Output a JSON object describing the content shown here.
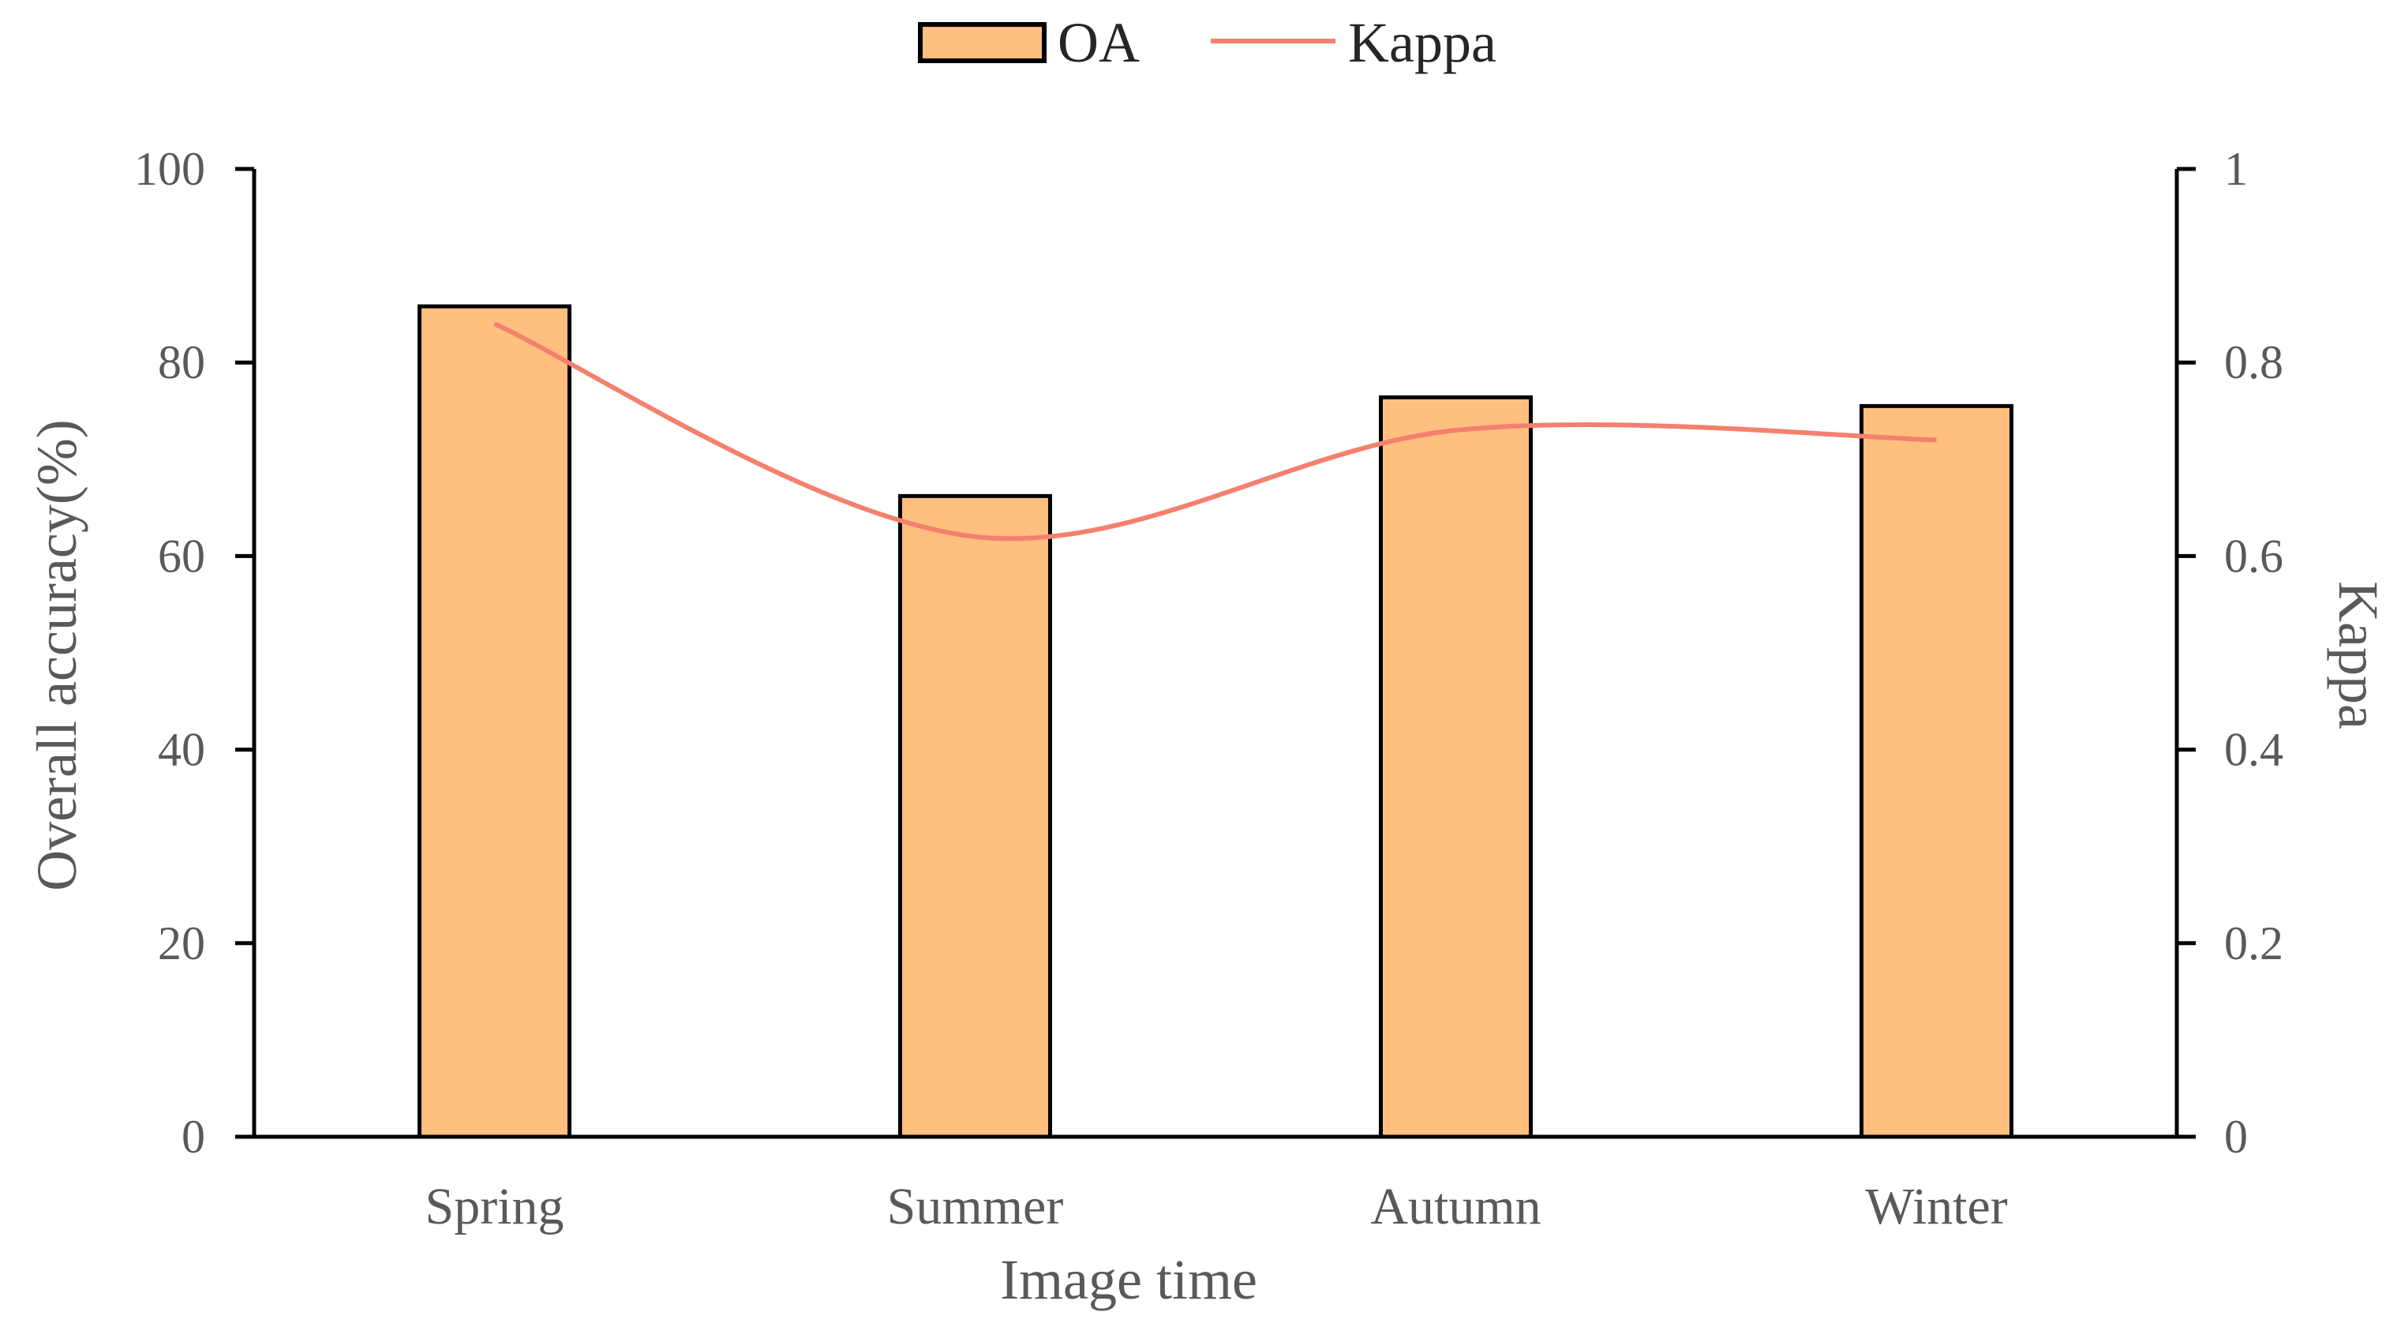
{
  "chart_data": {
    "type": "bar",
    "title": "",
    "categories": [
      "Spring",
      "Summer",
      "Autumn",
      "Winter"
    ],
    "series": [
      {
        "name": "OA",
        "type": "bar",
        "axis": "left",
        "values": [
          85.8,
          66.2,
          76.4,
          75.5
        ]
      },
      {
        "name": "Kappa",
        "type": "line",
        "axis": "right",
        "smooth": true,
        "values": [
          0.84,
          0.62,
          0.73,
          0.72
        ]
      }
    ],
    "xlabel": "Image time",
    "ylabel": "Overall accuracy(%)",
    "y2label": "Kappa",
    "ylim": [
      0,
      100
    ],
    "y2lim": [
      0,
      1
    ],
    "yticks": [
      "0",
      "20",
      "40",
      "60",
      "80",
      "100"
    ],
    "y2ticks": [
      "0",
      "0.2",
      "0.4",
      "0.6",
      "0.8",
      "1"
    ],
    "legend": {
      "position": "top-center",
      "items": [
        "OA",
        "Kappa"
      ]
    },
    "grid": false,
    "colors": {
      "bar_fill": "#FFBF7F",
      "bar_stroke": "#000000",
      "line": "#F4806E",
      "axis": "#000000"
    }
  }
}
